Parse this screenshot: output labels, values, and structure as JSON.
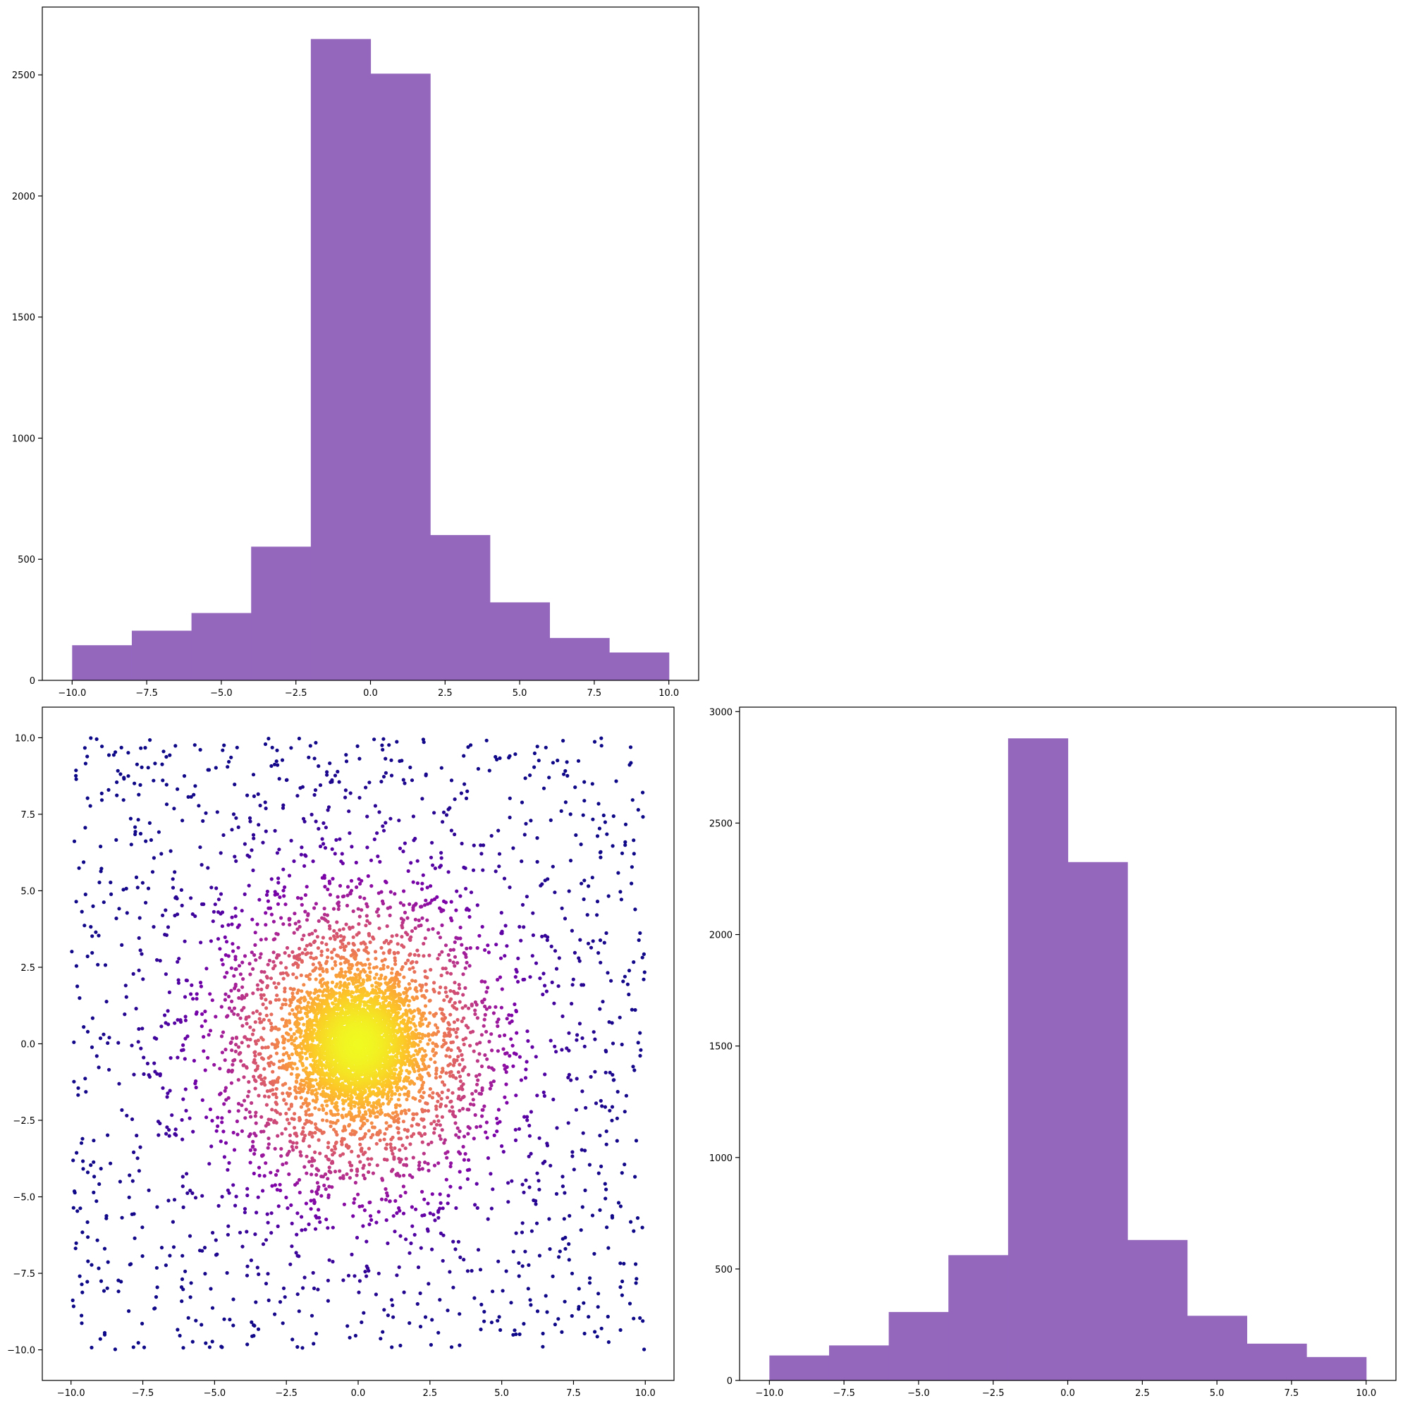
{
  "chart_data": [
    {
      "type": "bar",
      "panel": "top-left",
      "bin_edges": [
        -10,
        -8,
        -6,
        -4,
        -2,
        0,
        2,
        4,
        6,
        8,
        10
      ],
      "values": [
        145,
        205,
        278,
        552,
        2648,
        2505,
        600,
        322,
        175,
        115
      ],
      "color": "#9467bd",
      "xlim": [
        -11,
        11
      ],
      "ylim": [
        0,
        2780
      ],
      "xticks": [
        -10,
        -7.5,
        -5,
        -2.5,
        0,
        2.5,
        5,
        7.5,
        10
      ],
      "xtick_labels": [
        "−10.0",
        "−7.5",
        "−5.0",
        "−2.5",
        "0.0",
        "2.5",
        "5.0",
        "7.5",
        "10.0"
      ],
      "yticks": [
        0,
        500,
        1000,
        1500,
        2000,
        2500
      ],
      "ytick_labels": [
        "0",
        "500",
        "1000",
        "1500",
        "2000",
        "2500"
      ],
      "title": "",
      "xlabel": "",
      "ylabel": ""
    },
    {
      "type": "scatter",
      "panel": "bottom-left",
      "n_points": 6500,
      "x_range": [
        -10,
        10
      ],
      "y_range": [
        -10,
        10
      ],
      "colormap": "plasma",
      "color_encodes": "point density",
      "xlim": [
        -11,
        11
      ],
      "ylim": [
        -11,
        11
      ],
      "xticks": [
        -10,
        -7.5,
        -5,
        -2.5,
        0,
        2.5,
        5,
        7.5,
        10
      ],
      "xtick_labels": [
        "−10.0",
        "−7.5",
        "−5.0",
        "−2.5",
        "0.0",
        "2.5",
        "5.0",
        "7.5",
        "10.0"
      ],
      "yticks": [
        -10,
        -7.5,
        -5,
        -2.5,
        0,
        2.5,
        5,
        7.5,
        10
      ],
      "ytick_labels": [
        "−10.0",
        "−7.5",
        "−5.0",
        "−2.5",
        "0.0",
        "2.5",
        "5.0",
        "7.5",
        "10.0"
      ],
      "title": "",
      "xlabel": "",
      "ylabel": ""
    },
    {
      "type": "bar",
      "panel": "bottom-right",
      "bin_edges": [
        -10,
        -8,
        -6,
        -4,
        -2,
        0,
        2,
        4,
        6,
        8,
        10
      ],
      "values": [
        112,
        157,
        307,
        562,
        2880,
        2325,
        630,
        290,
        165,
        105
      ],
      "color": "#9467bd",
      "xlim": [
        -11,
        11
      ],
      "ylim": [
        0,
        3020
      ],
      "xticks": [
        -10,
        -7.5,
        -5,
        -2.5,
        0,
        2.5,
        5,
        7.5,
        10
      ],
      "xtick_labels": [
        "−10.0",
        "−7.5",
        "−5.0",
        "−2.5",
        "0.0",
        "2.5",
        "5.0",
        "7.5",
        "10.0"
      ],
      "yticks": [
        0,
        500,
        1000,
        1500,
        2000,
        2500,
        3000
      ],
      "ytick_labels": [
        "0",
        "500",
        "1000",
        "1500",
        "2000",
        "2500",
        "3000"
      ],
      "title": "",
      "xlabel": "",
      "ylabel": ""
    }
  ]
}
